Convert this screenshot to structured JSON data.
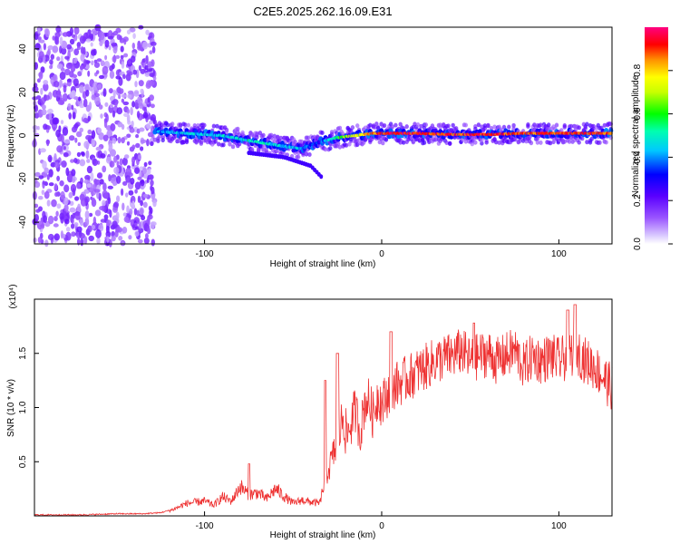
{
  "title": "C2E5.2025.262.16.09.E31",
  "chart_data": [
    {
      "type": "heatmap",
      "xlabel": "Height of straight line (km)",
      "ylabel": "Frequency (Hz)",
      "xlim": [
        -196,
        130
      ],
      "ylim": [
        -50,
        50
      ],
      "xticks": [
        -100,
        0,
        100
      ],
      "yticks": [
        -40,
        -20,
        0,
        20,
        40
      ],
      "colorbar": {
        "label": "Normalized spectral amplitude",
        "range": [
          0,
          1
        ],
        "ticks": [
          0.0,
          0.2,
          0.4,
          0.6,
          0.8
        ],
        "tick_labels": [
          "0.0",
          "0.2",
          "0.4",
          "0.6",
          "0.8"
        ],
        "colors": [
          "#ffffff",
          "#b9a0ff",
          "#7a00ff",
          "#0000ff",
          "#00d8ff",
          "#00ff00",
          "#ffff00",
          "#ff8000",
          "#ff0000",
          "#ff0080"
        ]
      },
      "noise_region": {
        "x": [
          -196,
          -128
        ],
        "freq": [
          -50,
          50
        ],
        "amplitude": [
          0.05,
          0.2
        ]
      },
      "signal_ridge": {
        "x": [
          -128,
          -110,
          -90,
          -70,
          -55,
          -45,
          -35,
          -25,
          -15,
          -5,
          0,
          10,
          20,
          40,
          60,
          80,
          100,
          120,
          130
        ],
        "freq": [
          2,
          1,
          0,
          -3,
          -5,
          -6,
          -3,
          -1,
          0,
          1,
          1,
          1,
          1,
          0.5,
          0.5,
          1,
          1,
          1,
          1
        ],
        "amplitude": [
          0.4,
          0.45,
          0.45,
          0.5,
          0.45,
          0.4,
          0.3,
          0.6,
          0.75,
          0.85,
          0.9,
          0.95,
          0.92,
          0.9,
          0.92,
          0.88,
          0.9,
          0.9,
          0.88
        ]
      },
      "secondary_streak": {
        "x": [
          -75,
          -55,
          -40,
          -33
        ],
        "freq": [
          -8,
          -10,
          -14,
          -20
        ]
      }
    },
    {
      "type": "line",
      "xlabel": "Height of straight line (km)",
      "ylabel": "SNR (10 * v/v)",
      "y_multiplier": "(x10⁴)",
      "xlim": [
        -196,
        130
      ],
      "ylim": [
        0,
        2.0
      ],
      "xticks": [
        -100,
        0,
        100
      ],
      "yticks": [
        0.5,
        1.0,
        1.5
      ],
      "ytick_labels": [
        "0.5",
        "1.0",
        "1.5"
      ],
      "color": "#ee3333",
      "series": [
        {
          "name": "SNR",
          "x": [
            -196,
            -170,
            -150,
            -135,
            -125,
            -118,
            -110,
            -100,
            -95,
            -90,
            -85,
            -80,
            -75,
            -70,
            -65,
            -60,
            -55,
            -50,
            -45,
            -40,
            -35,
            -32,
            -30,
            -28,
            -25,
            -22,
            -20,
            -18,
            -15,
            -12,
            -10,
            -8,
            -5,
            -2,
            0,
            5,
            10,
            15,
            20,
            25,
            30,
            35,
            40,
            45,
            50,
            55,
            60,
            65,
            70,
            75,
            80,
            85,
            90,
            95,
            100,
            105,
            110,
            115,
            120,
            125,
            130
          ],
          "y": [
            0.01,
            0.01,
            0.02,
            0.02,
            0.03,
            0.06,
            0.12,
            0.14,
            0.1,
            0.18,
            0.14,
            0.28,
            0.2,
            0.22,
            0.16,
            0.26,
            0.18,
            0.12,
            0.15,
            0.13,
            0.12,
            0.35,
            0.45,
            0.55,
            0.7,
            0.95,
            0.75,
            0.85,
            1.0,
            0.8,
            1.05,
            1.1,
            0.95,
            1.15,
            1.05,
            1.2,
            1.25,
            1.3,
            1.35,
            1.4,
            1.45,
            1.48,
            1.5,
            1.55,
            1.45,
            1.5,
            1.52,
            1.45,
            1.5,
            1.55,
            1.4,
            1.5,
            1.45,
            1.5,
            1.45,
            1.5,
            1.55,
            1.45,
            1.4,
            1.3,
            1.2
          ]
        }
      ],
      "peaks": [
        {
          "x": -75,
          "y": 0.48
        },
        {
          "x": -32,
          "y": 1.25
        },
        {
          "x": -25,
          "y": 1.5
        },
        {
          "x": 5,
          "y": 1.7
        },
        {
          "x": 52,
          "y": 1.78
        },
        {
          "x": 105,
          "y": 1.9
        },
        {
          "x": 109,
          "y": 1.95
        }
      ]
    }
  ]
}
